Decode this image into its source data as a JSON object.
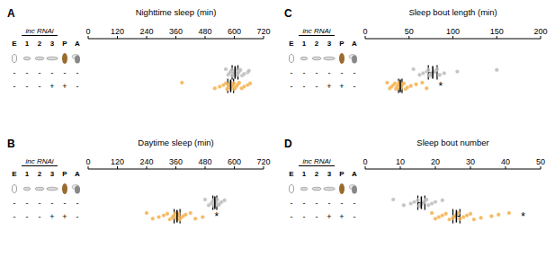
{
  "conditions": {
    "stages": [
      "E",
      "1",
      "2",
      "3",
      "P",
      "A"
    ],
    "rnai_label": "inc RNAi",
    "rows": [
      [
        "-",
        "-",
        "-",
        "-",
        "-",
        "-"
      ],
      [
        "-",
        "-",
        "-",
        "+",
        "+",
        "-"
      ]
    ]
  },
  "chart_data": [
    {
      "type": "scatter",
      "panel": "A",
      "x_label": "Nighttime sleep (min)",
      "xlim": [
        0,
        720
      ],
      "xticks": [
        0,
        120,
        240,
        360,
        480,
        600,
        720
      ],
      "series": [
        {
          "color": "#b5b5b5",
          "points": [
            565,
            575,
            580,
            585,
            590,
            592,
            598,
            600,
            603,
            607,
            610,
            615,
            620,
            625,
            632,
            640,
            655,
            660
          ],
          "mean": 603,
          "sem": 12
        },
        {
          "color": "#f2a93b",
          "points": [
            385,
            520,
            540,
            555,
            565,
            570,
            575,
            580,
            582,
            585,
            588,
            590,
            595,
            598,
            600,
            605,
            610,
            615,
            620,
            630,
            640,
            655,
            665
          ],
          "mean": 585,
          "sem": 12
        }
      ]
    },
    {
      "type": "scatter",
      "panel": "B",
      "x_label": "Daytime sleep (min)",
      "xlim": [
        0,
        720
      ],
      "xticks": [
        0,
        120,
        240,
        360,
        480,
        600,
        720
      ],
      "series": [
        {
          "color": "#b5b5b5",
          "points": [
            480,
            495,
            505,
            510,
            515,
            518,
            520,
            522,
            525,
            530,
            535,
            540,
            548,
            560
          ],
          "mean": 520,
          "sem": 8
        },
        {
          "color": "#f2a93b",
          "points": [
            240,
            265,
            290,
            310,
            325,
            335,
            345,
            350,
            355,
            360,
            362,
            365,
            368,
            370,
            375,
            380,
            390,
            400,
            420,
            440,
            470
          ],
          "mean": 365,
          "sem": 12,
          "significance": "*"
        }
      ]
    },
    {
      "type": "scatter",
      "panel": "C",
      "x_label": "Sleep bout length (min)",
      "xlim": [
        0,
        200
      ],
      "xticks": [
        0,
        50,
        100,
        150,
        200
      ],
      "series": [
        {
          "color": "#b5b5b5",
          "points": [
            55,
            62,
            66,
            70,
            72,
            74,
            75,
            78,
            80,
            82,
            85,
            90,
            105,
            150
          ],
          "mean": 77,
          "sem": 5
        },
        {
          "color": "#f2a93b",
          "points": [
            25,
            28,
            30,
            32,
            34,
            35,
            36,
            37,
            38,
            39,
            40,
            41,
            42,
            44,
            46,
            48,
            52,
            58,
            65,
            70
          ],
          "mean": 40,
          "sem": 2,
          "significance": "*"
        }
      ]
    },
    {
      "type": "scatter",
      "panel": "D",
      "x_label": "Sleep bout number",
      "xlim": [
        0,
        50
      ],
      "xticks": [
        0,
        10,
        20,
        30,
        40,
        50
      ],
      "series": [
        {
          "color": "#b5b5b5",
          "points": [
            8,
            11,
            13,
            14,
            15,
            15.5,
            16,
            16.5,
            17,
            17.5,
            18,
            19,
            20,
            22
          ],
          "mean": 16,
          "sem": 1
        },
        {
          "color": "#f2a93b",
          "points": [
            19,
            20,
            21,
            22,
            23,
            24,
            25,
            25.5,
            26,
            26.5,
            27,
            28,
            29,
            30,
            31,
            33,
            36,
            38,
            41
          ],
          "mean": 26,
          "sem": 1,
          "significance": "*"
        }
      ]
    }
  ]
}
